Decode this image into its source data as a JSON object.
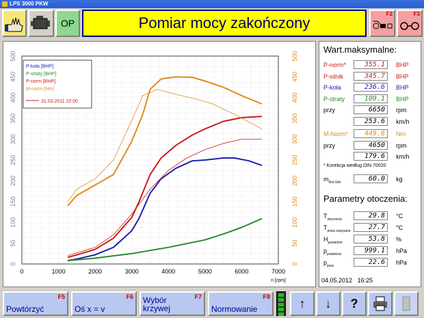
{
  "window": {
    "title": "LPS 3000 PKW"
  },
  "header": {
    "title": "Pomiar mocy zakończony",
    "op_label": "OP",
    "f2_label": "F2",
    "f3_label": "F3"
  },
  "colors": {
    "p_kola": "#1f1fb4",
    "p_straty": "#2a8a2a",
    "p_norm": "#cc1a1a",
    "m_norm": "#e08a1a",
    "title_bg": "#ffff00"
  },
  "chart_data": {
    "type": "line",
    "xlabel": "n [rpm]",
    "xlim": [
      0,
      7000
    ],
    "ylim_left": [
      0,
      500
    ],
    "ylim_right": [
      0,
      500
    ],
    "x_ticks": [
      0,
      1000,
      2000,
      3000,
      4000,
      5000,
      6000,
      7000
    ],
    "y_ticks_left": [
      0,
      50,
      100,
      150,
      200,
      250,
      300,
      350,
      400,
      450,
      500
    ],
    "y_ticks_right": [
      0,
      50,
      100,
      150,
      200,
      250,
      300,
      350,
      400,
      450,
      500
    ],
    "grid": true,
    "legend_position": "top-left",
    "legend": [
      "P-koła [BHP]",
      "P-straty [BHP]",
      "P-norm [BHP]",
      "M-norm [Nm]",
      "31.03.2011 22:00"
    ],
    "series": [
      {
        "name": "P-koła [BHP]",
        "color": "#1f1fb4",
        "x": [
          1250,
          1500,
          2000,
          2500,
          3000,
          3200,
          3500,
          3800,
          4200,
          4650,
          5000,
          5500,
          5800,
          6200,
          6550
        ],
        "y": [
          8,
          12,
          22,
          40,
          80,
          110,
          170,
          205,
          230,
          248,
          250,
          255,
          255,
          248,
          237
        ]
      },
      {
        "name": "P-straty [BHP]",
        "color": "#2a8a2a",
        "x": [
          1250,
          2000,
          3000,
          4000,
          5000,
          5500,
          6000,
          6550
        ],
        "y": [
          8,
          14,
          25,
          40,
          58,
          72,
          88,
          109
        ]
      },
      {
        "name": "P-norm [BHP]",
        "color": "#cc1a1a",
        "x": [
          1250,
          1500,
          2000,
          2500,
          3000,
          3200,
          3500,
          3800,
          4200,
          4650,
          5000,
          5500,
          6000,
          6550
        ],
        "y": [
          16,
          22,
          35,
          62,
          112,
          150,
          215,
          255,
          285,
          310,
          325,
          343,
          352,
          355
        ]
      },
      {
        "name": "M-norm [Nm]",
        "color": "#e08a1a",
        "x": [
          1250,
          1500,
          2000,
          2500,
          3000,
          3300,
          3500,
          3800,
          4200,
          4650,
          5000,
          5500,
          6000,
          6550
        ],
        "y": [
          140,
          165,
          190,
          215,
          295,
          360,
          420,
          445,
          450,
          449,
          440,
          425,
          405,
          385
        ]
      },
      {
        "name": "P-norm 31.03.2011 22:00",
        "color": "#cc1a1a",
        "thin": true,
        "x": [
          1250,
          2000,
          2500,
          3000,
          3500,
          4000,
          4500,
          5000,
          5500,
          6000,
          6550
        ],
        "y": [
          20,
          40,
          70,
          120,
          180,
          225,
          255,
          275,
          290,
          300,
          300
        ]
      },
      {
        "name": "M-norm 31.03.2011 22:00",
        "color": "#e08a1a",
        "thin": true,
        "x": [
          1250,
          1500,
          2000,
          2500,
          3000,
          3300,
          3700,
          4200,
          4700,
          5200,
          5800,
          6550
        ],
        "y": [
          150,
          180,
          205,
          250,
          345,
          405,
          420,
          408,
          398,
          385,
          360,
          325
        ]
      }
    ]
  },
  "max_values": {
    "header": "Wart.maksymalne:",
    "rows": [
      {
        "label": "P-norm*",
        "value": "355.1",
        "unit": "BHP",
        "color": "#cc1a1a"
      },
      {
        "label": "P-silnik",
        "value": "345.7",
        "unit": "BHP",
        "color": "#cc1a1a"
      },
      {
        "label": "P-koła",
        "value": "236.6",
        "unit": "BHP",
        "color": "#1f1fb4"
      },
      {
        "label": "P-straty",
        "value": "109.1",
        "unit": "BHP",
        "color": "#2a8a2a"
      },
      {
        "label": "przy",
        "value": "6650",
        "unit": "rpm",
        "color": "#000000"
      },
      {
        "label": "",
        "value": "253.6",
        "unit": "km/h",
        "color": "#000000"
      }
    ],
    "torque_rows": [
      {
        "label": "M-Norm*",
        "value": "449.8",
        "unit": "Nm",
        "color": "#e08a1a"
      },
      {
        "label": "przy",
        "value": "4650",
        "unit": "rpm",
        "color": "#000000"
      },
      {
        "label": "",
        "value": "179.6",
        "unit": "km/h",
        "color": "#000000"
      }
    ],
    "correction_note": "* Korekcja według DIN 70020",
    "mass_label": "m",
    "mass_sub": "Rol-Veh",
    "mass_value": "60.0",
    "mass_unit": "kg"
  },
  "ambient": {
    "header": "Parametry otoczenia:",
    "rows": [
      {
        "sym": "T",
        "sub": "otoczenia",
        "value": "29.8",
        "unit": "°C"
      },
      {
        "sym": "T",
        "sub": "powz.zasysane",
        "value": "27.7",
        "unit": "°C"
      },
      {
        "sym": "H",
        "sub": "powietrze",
        "value": "53.8",
        "unit": "%"
      },
      {
        "sym": "p",
        "sub": "powietrze",
        "value": "999.1",
        "unit": "hPa"
      },
      {
        "sym": "p",
        "sub": "para",
        "value": "22.6",
        "unit": "hPa"
      }
    ]
  },
  "footer": {
    "date": "04.05.2012",
    "time": "16:25"
  },
  "bottom": {
    "f5": {
      "key": "F5",
      "label": "Powtórzyć"
    },
    "f6": {
      "key": "F6",
      "label": "Oś x = v"
    },
    "f7": {
      "key": "F7",
      "label1": "Wybór",
      "label2": "krzywej"
    },
    "f8": {
      "key": "F8",
      "label": "Normowanie"
    },
    "up_icon": "↑",
    "down_icon": "↓",
    "help_icon": "?"
  }
}
